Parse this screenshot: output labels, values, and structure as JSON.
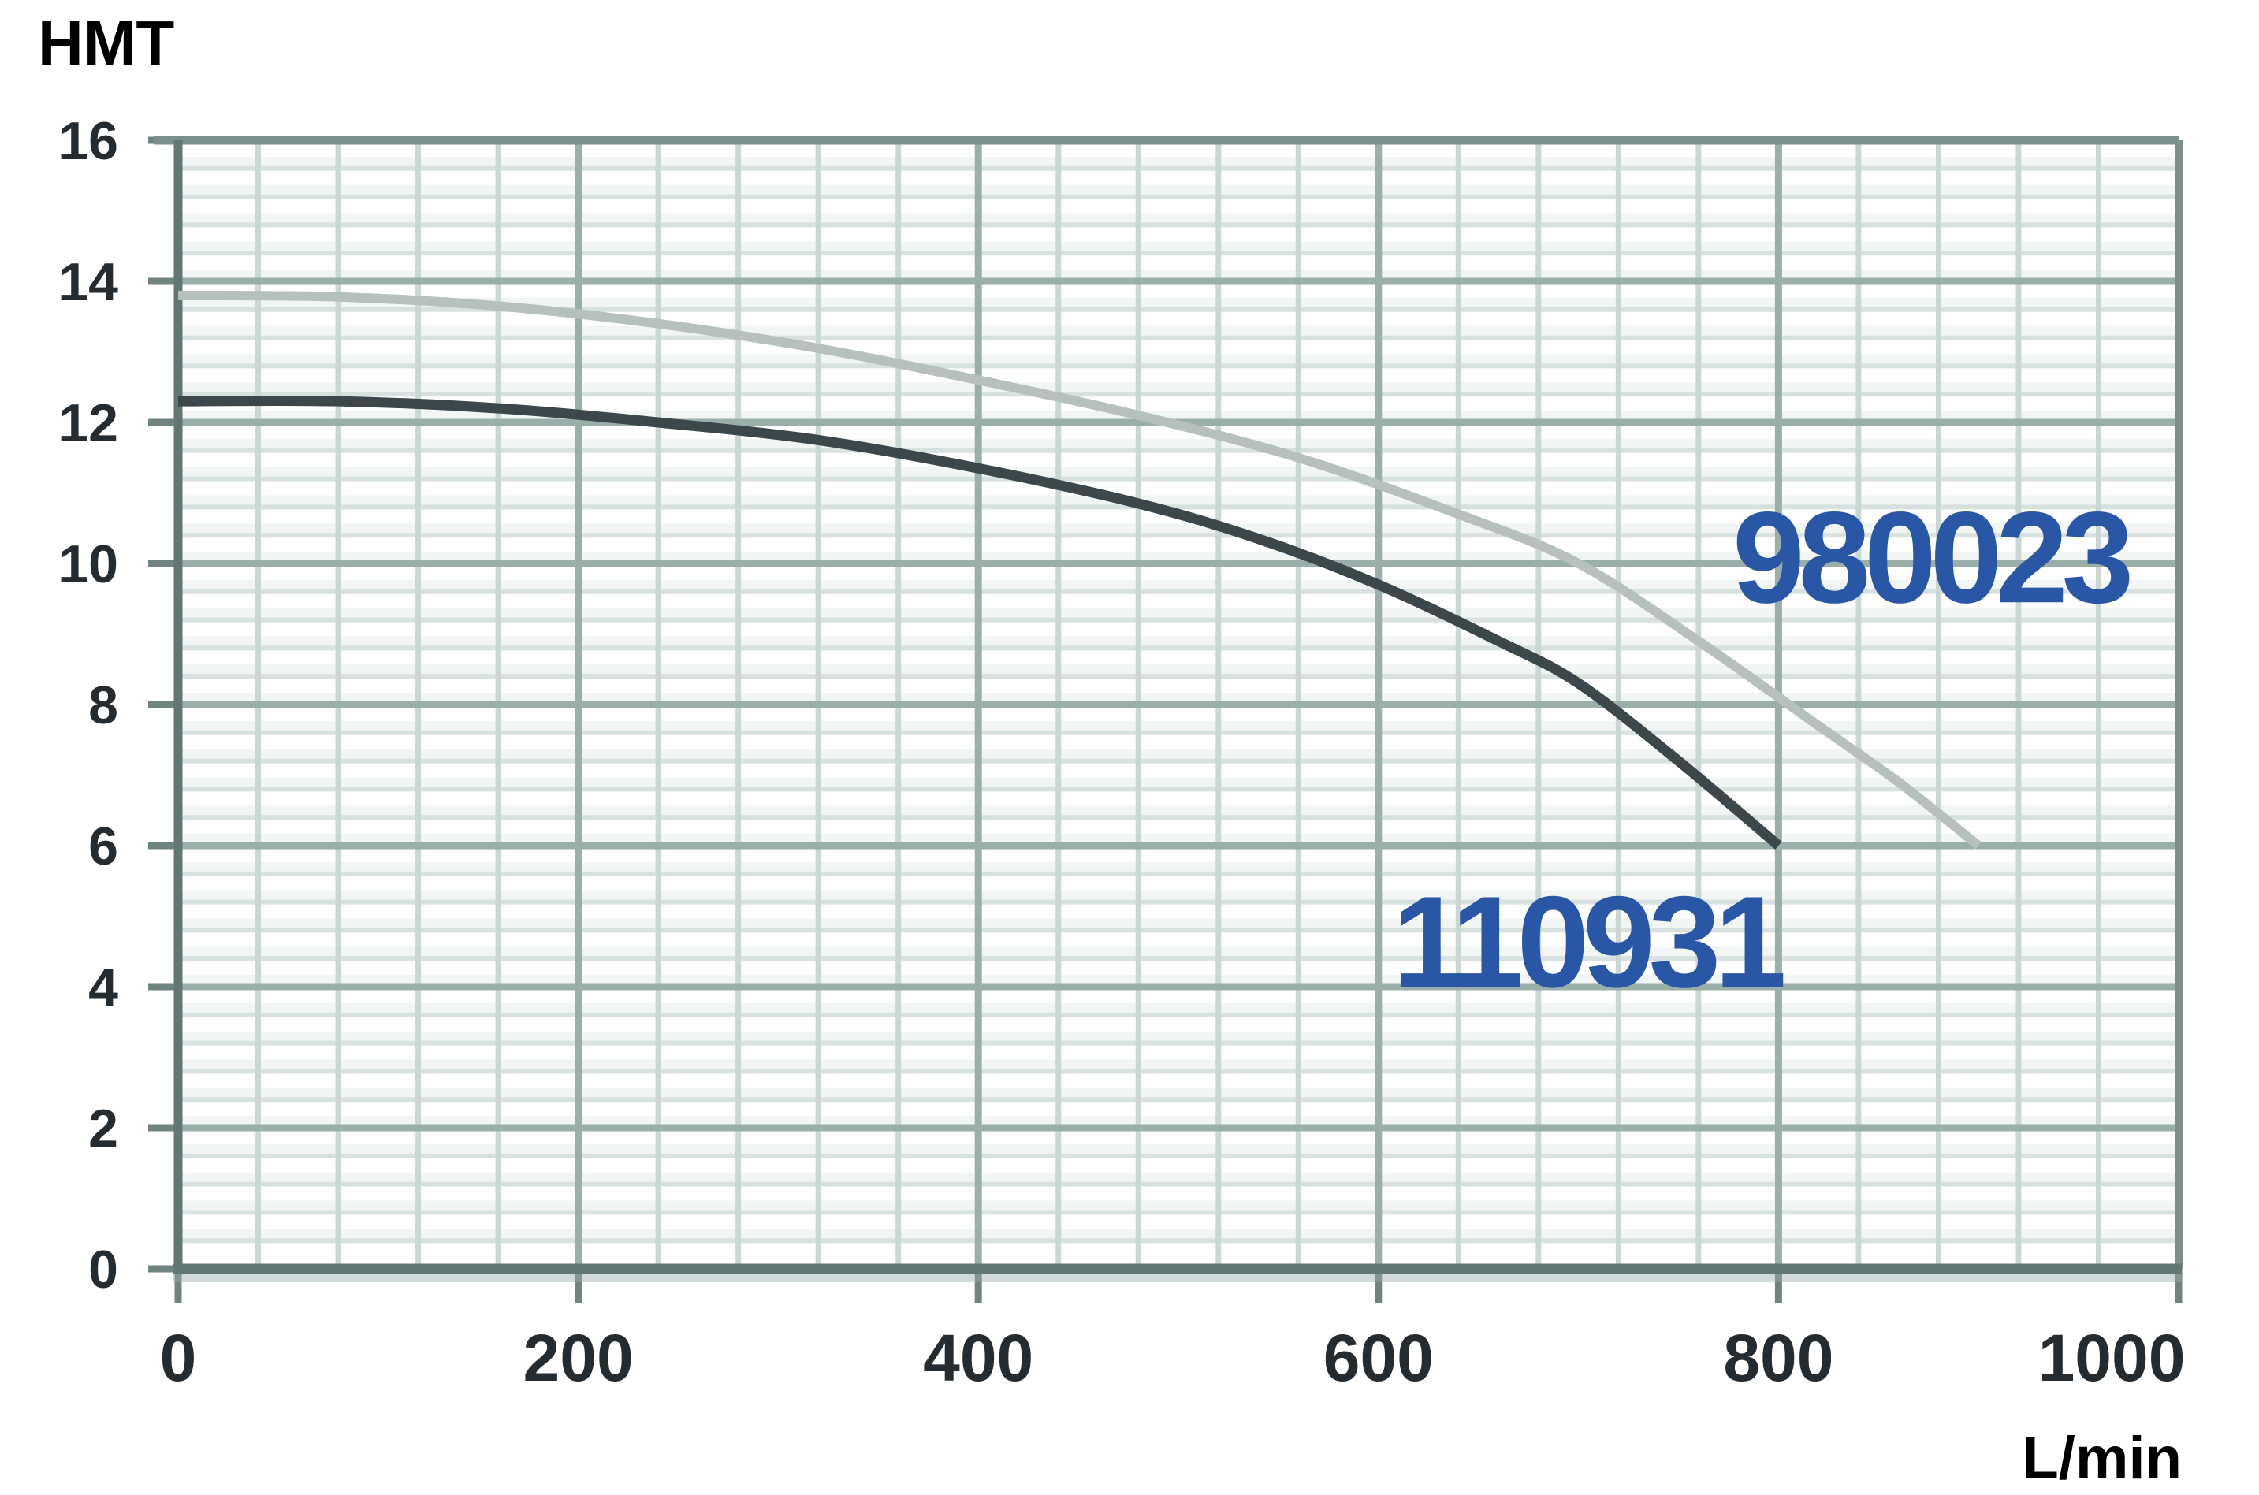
{
  "chart_data": {
    "type": "line",
    "title": "",
    "xlabel": "L/min",
    "ylabel": "HMT",
    "xlim": [
      0,
      1000
    ],
    "ylim": [
      0,
      16
    ],
    "x_major_step": 200,
    "x_minor_step": 40,
    "y_major_step": 2,
    "y_minor_step": 0.4,
    "x_tick_labels": [
      "0",
      "200",
      "400",
      "600",
      "800",
      "1000"
    ],
    "y_tick_labels": [
      "0",
      "2",
      "4",
      "6",
      "8",
      "10",
      "12",
      "14",
      "16"
    ],
    "grid": true,
    "legend": "inline-curve-labels",
    "colors": {
      "background": "#ffffff",
      "band": "#eff4f3",
      "grid_minor_h": "#d7e1df",
      "grid_minor_v": "#cbd7d4",
      "grid_major": "#9aaeaa",
      "border": "#7b908c",
      "axis": "#627773",
      "tick": "#6f8480",
      "text": "#242b31",
      "series_label": "#2a57a5"
    },
    "series": [
      {
        "name": "980023",
        "color": "#b6c1be",
        "stroke_width": 12,
        "label_color": "#2a57a5",
        "label_x": 777,
        "label_y": 9.45,
        "points": [
          [
            0,
            13.8
          ],
          [
            80,
            13.78
          ],
          [
            160,
            13.65
          ],
          [
            240,
            13.4
          ],
          [
            320,
            13.05
          ],
          [
            400,
            12.6
          ],
          [
            480,
            12.1
          ],
          [
            560,
            11.5
          ],
          [
            640,
            10.7
          ],
          [
            700,
            10.0
          ],
          [
            760,
            8.9
          ],
          [
            820,
            7.7
          ],
          [
            860,
            6.9
          ],
          [
            900,
            6.0
          ]
        ]
      },
      {
        "name": "110931",
        "color": "#3b474b",
        "stroke_width": 13,
        "label_color": "#2a57a5",
        "label_x": 607,
        "label_y": 4.0,
        "points": [
          [
            0,
            12.3
          ],
          [
            80,
            12.3
          ],
          [
            160,
            12.2
          ],
          [
            240,
            12.0
          ],
          [
            320,
            11.75
          ],
          [
            400,
            11.35
          ],
          [
            480,
            10.85
          ],
          [
            540,
            10.35
          ],
          [
            600,
            9.7
          ],
          [
            660,
            8.9
          ],
          [
            700,
            8.3
          ],
          [
            750,
            7.2
          ],
          [
            800,
            6.0
          ]
        ]
      }
    ]
  }
}
